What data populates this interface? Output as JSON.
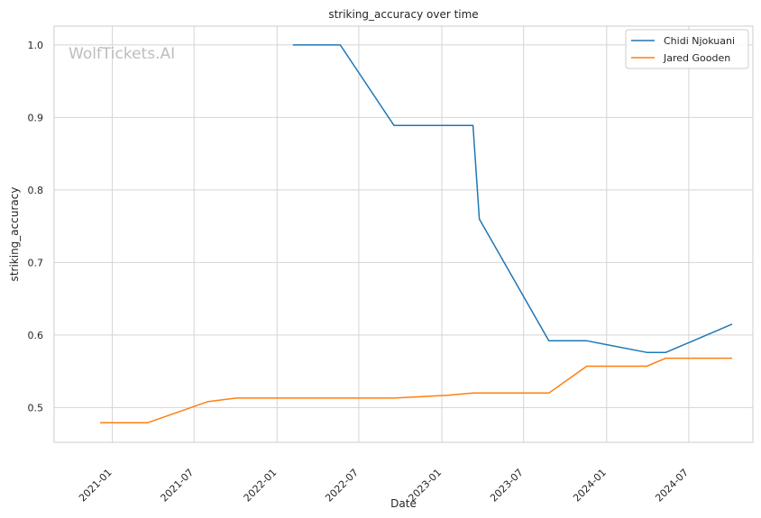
{
  "chart_data": {
    "type": "line",
    "title": "striking_accuracy over time",
    "xlabel": "Date",
    "ylabel": "striking_accuracy",
    "watermark": "WolfTickets.AI",
    "x_axis": "date",
    "xlim": [
      "2020-08-25",
      "2024-11-20"
    ],
    "ylim": [
      0.452,
      1.026
    ],
    "x_ticks": [
      "2021-01",
      "2021-07",
      "2022-01",
      "2022-07",
      "2023-01",
      "2023-07",
      "2024-01",
      "2024-07"
    ],
    "y_ticks": [
      "0.5",
      "0.6",
      "0.7",
      "0.8",
      "0.9",
      "1.0"
    ],
    "grid": true,
    "legend_position": "top-right",
    "colors": {
      "Chidi Njokuani": "#1f77b4",
      "Jared Gooden": "#ff7f0e"
    },
    "series": [
      {
        "name": "Chidi Njokuani",
        "color": "#1f77b4",
        "points": [
          [
            "2022-02-05",
            1.0
          ],
          [
            "2022-05-21",
            1.0
          ],
          [
            "2022-09-17",
            0.889
          ],
          [
            "2023-03-11",
            0.889
          ],
          [
            "2023-03-25",
            0.76
          ],
          [
            "2023-08-26",
            0.592
          ],
          [
            "2023-11-18",
            0.592
          ],
          [
            "2024-03-30",
            0.576
          ],
          [
            "2024-05-11",
            0.576
          ],
          [
            "2024-10-05",
            0.615
          ]
        ]
      },
      {
        "name": "Jared Gooden",
        "color": "#ff7f0e",
        "points": [
          [
            "2020-12-05",
            0.479
          ],
          [
            "2021-03-20",
            0.479
          ],
          [
            "2021-07-31",
            0.508
          ],
          [
            "2021-10-02",
            0.513
          ],
          [
            "2022-09-17",
            0.513
          ],
          [
            "2023-01-14",
            0.517
          ],
          [
            "2023-03-11",
            0.52
          ],
          [
            "2023-08-26",
            0.52
          ],
          [
            "2023-11-18",
            0.557
          ],
          [
            "2024-03-30",
            0.557
          ],
          [
            "2024-05-11",
            0.568
          ],
          [
            "2024-10-05",
            0.568
          ]
        ]
      }
    ]
  }
}
